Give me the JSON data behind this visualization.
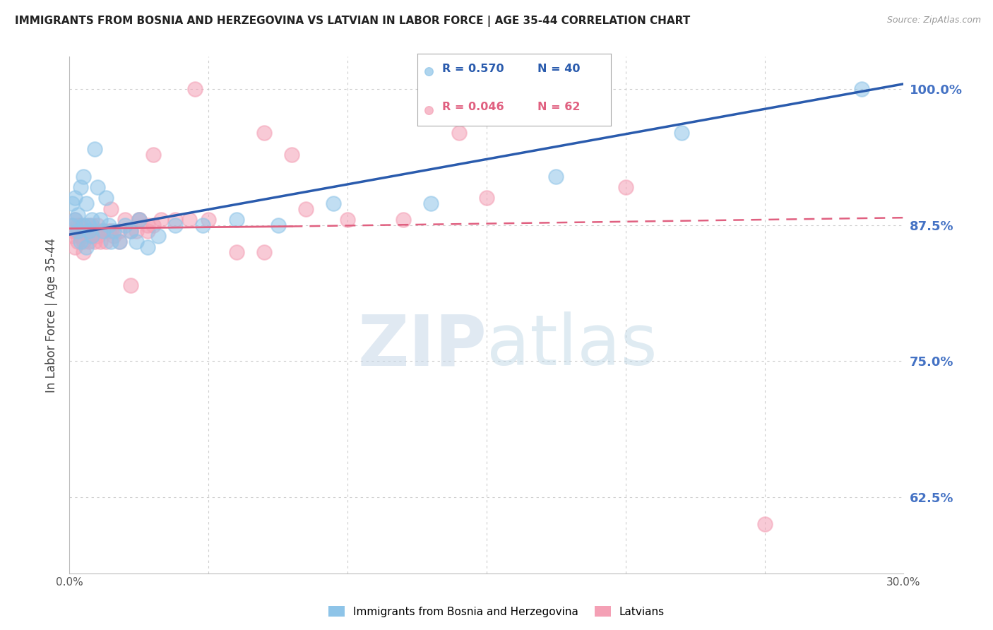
{
  "title": "IMMIGRANTS FROM BOSNIA AND HERZEGOVINA VS LATVIAN IN LABOR FORCE | AGE 35-44 CORRELATION CHART",
  "source": "Source: ZipAtlas.com",
  "ylabel": "In Labor Force | Age 35-44",
  "xmin": 0.0,
  "xmax": 0.3,
  "ymin": 0.555,
  "ymax": 1.03,
  "legend_blue_R": "0.570",
  "legend_blue_N": "40",
  "legend_pink_R": "0.046",
  "legend_pink_N": "62",
  "blue_color": "#8EC4E8",
  "pink_color": "#F4A0B5",
  "blue_line_color": "#2A5BAD",
  "pink_line_color": "#E06080",
  "watermark_zip": "ZIP",
  "watermark_atlas": "atlas",
  "grid_color": "#CCCCCC",
  "background_color": "#FFFFFF",
  "blue_scatter_x": [
    0.001,
    0.001,
    0.002,
    0.002,
    0.003,
    0.003,
    0.004,
    0.004,
    0.005,
    0.005,
    0.006,
    0.006,
    0.007,
    0.007,
    0.008,
    0.008,
    0.009,
    0.01,
    0.011,
    0.012,
    0.013,
    0.014,
    0.015,
    0.016,
    0.018,
    0.02,
    0.022,
    0.024,
    0.025,
    0.028,
    0.032,
    0.038,
    0.048,
    0.06,
    0.075,
    0.095,
    0.13,
    0.175,
    0.22,
    0.285
  ],
  "blue_scatter_y": [
    0.875,
    0.895,
    0.88,
    0.9,
    0.885,
    0.87,
    0.91,
    0.86,
    0.92,
    0.875,
    0.895,
    0.855,
    0.875,
    0.87,
    0.88,
    0.865,
    0.945,
    0.91,
    0.88,
    0.87,
    0.9,
    0.875,
    0.86,
    0.87,
    0.86,
    0.875,
    0.87,
    0.86,
    0.88,
    0.855,
    0.865,
    0.875,
    0.875,
    0.88,
    0.875,
    0.895,
    0.895,
    0.92,
    0.96,
    1.0
  ],
  "pink_scatter_x": [
    0.001,
    0.001,
    0.001,
    0.002,
    0.002,
    0.002,
    0.003,
    0.003,
    0.003,
    0.004,
    0.004,
    0.004,
    0.005,
    0.005,
    0.005,
    0.006,
    0.006,
    0.007,
    0.007,
    0.008,
    0.008,
    0.009,
    0.009,
    0.01,
    0.01,
    0.011,
    0.011,
    0.012,
    0.013,
    0.014,
    0.015,
    0.016,
    0.018,
    0.02,
    0.022,
    0.024,
    0.025,
    0.028,
    0.03,
    0.033,
    0.038,
    0.043,
    0.05,
    0.06,
    0.07,
    0.085,
    0.1,
    0.12,
    0.15,
    0.2,
    0.25,
    0.16,
    0.14,
    0.045,
    0.07,
    0.08,
    0.03,
    0.025,
    0.028,
    0.015,
    0.018,
    0.022
  ],
  "pink_scatter_y": [
    0.875,
    0.865,
    0.87,
    0.88,
    0.87,
    0.855,
    0.87,
    0.86,
    0.875,
    0.87,
    0.875,
    0.865,
    0.87,
    0.86,
    0.85,
    0.875,
    0.865,
    0.87,
    0.86,
    0.865,
    0.875,
    0.86,
    0.87,
    0.875,
    0.865,
    0.87,
    0.86,
    0.87,
    0.86,
    0.87,
    0.87,
    0.865,
    0.87,
    0.88,
    0.87,
    0.87,
    0.88,
    0.87,
    0.875,
    0.88,
    0.88,
    0.88,
    0.88,
    0.85,
    0.85,
    0.89,
    0.88,
    0.88,
    0.9,
    0.91,
    0.6,
    1.0,
    0.96,
    1.0,
    0.96,
    0.94,
    0.94,
    0.88,
    0.875,
    0.89,
    0.86,
    0.82
  ],
  "blue_trend_x0": 0.0,
  "blue_trend_y0": 0.8665,
  "blue_trend_x1": 0.3,
  "blue_trend_y1": 1.005,
  "pink_trend_solid_x0": 0.0,
  "pink_trend_solid_y0": 0.872,
  "pink_trend_solid_x1": 0.08,
  "pink_trend_solid_y1": 0.874,
  "pink_trend_dash_x0": 0.08,
  "pink_trend_dash_y0": 0.874,
  "pink_trend_dash_x1": 0.3,
  "pink_trend_dash_y1": 0.882
}
